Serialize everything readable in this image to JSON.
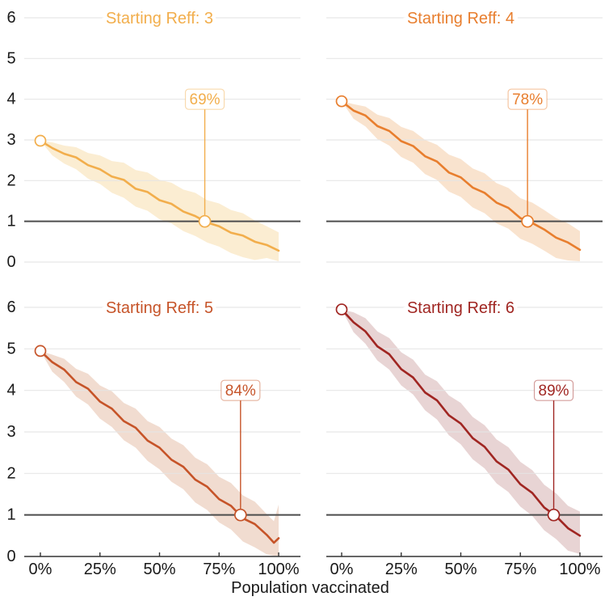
{
  "figure": {
    "xlabel": "Population vaccinated",
    "x_tick_labels": [
      "0%",
      "25%",
      "50%",
      "75%",
      "100%"
    ],
    "x_tick_values": [
      0,
      25,
      50,
      75,
      100
    ],
    "y_tick_values": [
      0,
      1,
      2,
      3,
      4,
      5,
      6
    ],
    "y_axis_range": [
      0,
      6
    ],
    "x_axis_range": [
      0,
      100
    ],
    "reference_line_y": 1,
    "grid": true,
    "colors": {
      "grid": "#e4e4e4",
      "reference_line": "#4d4d4d",
      "axis": "#333333",
      "text": "#1a1a1a",
      "background": "#ffffff"
    }
  },
  "chart_data": [
    {
      "type": "line",
      "title": "Starting Reff: 3",
      "line_color": "#F2AE4C",
      "band_color": "#FBEDD2",
      "start_value": 2.98,
      "annotation": {
        "label": "69%",
        "x": 69,
        "y": 1
      },
      "x": [
        0,
        5,
        10,
        15,
        20,
        25,
        30,
        35,
        40,
        45,
        50,
        55,
        60,
        65,
        70,
        75,
        80,
        85,
        90,
        95,
        100
      ],
      "y": [
        2.98,
        2.8,
        2.66,
        2.57,
        2.38,
        2.28,
        2.1,
        2.02,
        1.8,
        1.72,
        1.52,
        1.43,
        1.24,
        1.13,
        0.97,
        0.88,
        0.72,
        0.65,
        0.5,
        0.42,
        0.28
      ],
      "band_low": [
        2.98,
        2.62,
        2.42,
        2.28,
        2.05,
        1.92,
        1.7,
        1.58,
        1.36,
        1.26,
        1.05,
        0.95,
        0.76,
        0.64,
        0.48,
        0.38,
        0.22,
        0.12,
        0.05,
        0.1,
        0.02
      ],
      "band_high": [
        2.98,
        2.94,
        2.86,
        2.82,
        2.68,
        2.62,
        2.48,
        2.44,
        2.26,
        2.2,
        2.02,
        1.95,
        1.78,
        1.7,
        1.52,
        1.44,
        1.28,
        1.2,
        1.02,
        0.88,
        0.73
      ]
    },
    {
      "type": "line",
      "title": "Starting Reff: 4",
      "line_color": "#E87E2E",
      "band_color": "#F9E3CE",
      "start_value": 3.95,
      "annotation": {
        "label": "78%",
        "x": 78,
        "y": 1
      },
      "x": [
        0,
        5,
        10,
        15,
        20,
        25,
        30,
        35,
        40,
        45,
        50,
        55,
        60,
        65,
        70,
        75,
        80,
        85,
        90,
        95,
        100
      ],
      "y": [
        3.95,
        3.72,
        3.6,
        3.34,
        3.22,
        2.97,
        2.85,
        2.6,
        2.47,
        2.2,
        2.08,
        1.83,
        1.7,
        1.46,
        1.33,
        1.08,
        0.96,
        0.8,
        0.6,
        0.48,
        0.3
      ],
      "band_low": [
        3.95,
        3.52,
        3.33,
        3.02,
        2.86,
        2.58,
        2.44,
        2.16,
        2.02,
        1.73,
        1.6,
        1.34,
        1.2,
        0.95,
        0.82,
        0.57,
        0.45,
        0.28,
        0.1,
        0.04,
        0.02
      ],
      "band_high": [
        3.95,
        3.88,
        3.82,
        3.62,
        3.54,
        3.32,
        3.22,
        3.0,
        2.88,
        2.64,
        2.53,
        2.3,
        2.18,
        1.94,
        1.82,
        1.57,
        1.46,
        1.28,
        1.08,
        0.95,
        0.76
      ]
    },
    {
      "type": "line",
      "title": "Starting Reff: 5",
      "line_color": "#C65429",
      "band_color": "#F1DCD0",
      "start_value": 4.95,
      "annotation": {
        "label": "84%",
        "x": 84,
        "y": 1
      },
      "x": [
        0,
        5,
        10,
        15,
        20,
        25,
        30,
        35,
        40,
        45,
        50,
        55,
        60,
        65,
        70,
        75,
        80,
        85,
        90,
        95,
        98,
        100
      ],
      "y": [
        4.95,
        4.68,
        4.5,
        4.2,
        4.04,
        3.73,
        3.56,
        3.26,
        3.1,
        2.79,
        2.62,
        2.33,
        2.16,
        1.85,
        1.68,
        1.38,
        1.22,
        0.92,
        0.78,
        0.52,
        0.33,
        0.44
      ],
      "band_low": [
        4.95,
        4.45,
        4.2,
        3.85,
        3.66,
        3.32,
        3.12,
        2.8,
        2.62,
        2.3,
        2.1,
        1.8,
        1.62,
        1.3,
        1.12,
        0.82,
        0.65,
        0.36,
        0.22,
        0.05,
        0.02,
        0.02
      ],
      "band_high": [
        4.95,
        4.86,
        4.76,
        4.52,
        4.4,
        4.12,
        3.98,
        3.7,
        3.56,
        3.26,
        3.12,
        2.84,
        2.68,
        2.38,
        2.22,
        1.92,
        1.77,
        1.47,
        1.32,
        1.02,
        0.85,
        1.25
      ]
    },
    {
      "type": "line",
      "title": "Starting Reff: 6",
      "line_color": "#A02622",
      "band_color": "#E8D4D4",
      "start_value": 5.95,
      "annotation": {
        "label": "89%",
        "x": 89,
        "y": 1
      },
      "x": [
        0,
        5,
        10,
        15,
        20,
        25,
        30,
        35,
        40,
        45,
        50,
        55,
        60,
        65,
        70,
        75,
        80,
        85,
        90,
        95,
        100
      ],
      "y": [
        5.95,
        5.64,
        5.42,
        5.06,
        4.87,
        4.51,
        4.31,
        3.95,
        3.76,
        3.4,
        3.2,
        2.85,
        2.64,
        2.29,
        2.09,
        1.74,
        1.53,
        1.18,
        0.97,
        0.68,
        0.5
      ],
      "band_low": [
        5.95,
        5.4,
        5.12,
        4.72,
        4.5,
        4.12,
        3.9,
        3.52,
        3.3,
        2.92,
        2.7,
        2.34,
        2.12,
        1.76,
        1.55,
        1.2,
        0.98,
        0.63,
        0.42,
        0.14,
        0.06
      ],
      "band_high": [
        5.95,
        5.88,
        5.74,
        5.42,
        5.26,
        4.92,
        4.74,
        4.38,
        4.22,
        3.88,
        3.7,
        3.36,
        3.16,
        2.82,
        2.63,
        2.28,
        2.08,
        1.73,
        1.52,
        1.22,
        1.08
      ]
    }
  ]
}
